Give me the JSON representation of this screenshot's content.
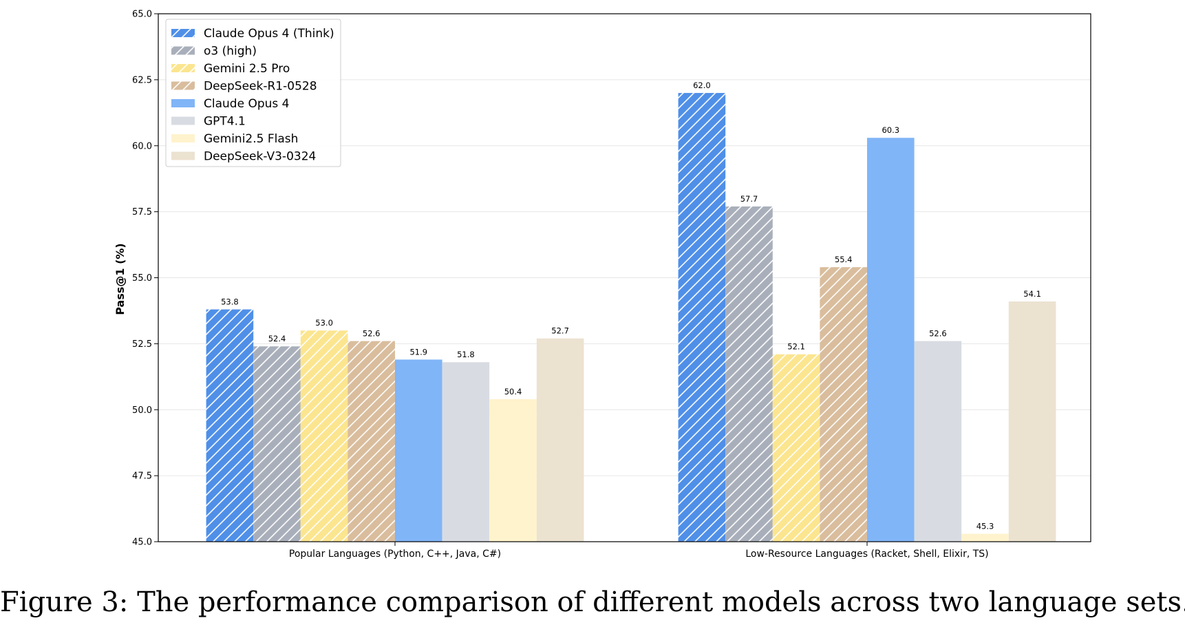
{
  "caption": "Figure 3: The performance comparison of different models across two language sets.",
  "chart_data": {
    "type": "bar",
    "title": "",
    "xlabel": "",
    "ylabel": "Pass@1 (%)",
    "ylim": [
      45.0,
      65.0
    ],
    "yticks": [
      "45.0",
      "47.5",
      "50.0",
      "52.5",
      "55.0",
      "57.5",
      "60.0",
      "62.5",
      "65.0"
    ],
    "grid": "horizontal",
    "legend_position": "top-left",
    "categories": [
      "Popular Languages (Python, C++, Java, C#)",
      "Low-Resource Languages (Racket, Shell, Elixir, TS)"
    ],
    "series": [
      {
        "name": "Claude Opus 4 (Think)",
        "values": [
          53.8,
          62.0
        ],
        "labels": [
          "53.8",
          "62.0"
        ],
        "color": "#4f8fe8",
        "hatched": true
      },
      {
        "name": "o3 (high)",
        "values": [
          52.4,
          57.7
        ],
        "labels": [
          "52.4",
          "57.7"
        ],
        "color": "#a9afba",
        "hatched": true
      },
      {
        "name": "Gemini 2.5 Pro",
        "values": [
          53.0,
          52.1
        ],
        "labels": [
          "53.0",
          "52.1"
        ],
        "color": "#fbe58f",
        "hatched": true
      },
      {
        "name": "DeepSeek-R1-0528",
        "values": [
          52.6,
          55.4
        ],
        "labels": [
          "52.6",
          "55.4"
        ],
        "color": "#d9bd9d",
        "hatched": true
      },
      {
        "name": "Claude Opus 4",
        "values": [
          51.9,
          60.3
        ],
        "labels": [
          "51.9",
          "60.3"
        ],
        "color": "#80b5f7",
        "hatched": false
      },
      {
        "name": "GPT4.1",
        "values": [
          51.8,
          52.6
        ],
        "labels": [
          "51.8",
          "52.6"
        ],
        "color": "#d8dce2",
        "hatched": false
      },
      {
        "name": "Gemini2.5 Flash",
        "values": [
          50.4,
          45.3
        ],
        "labels": [
          "50.4",
          "45.3"
        ],
        "color": "#fff3cd",
        "hatched": false
      },
      {
        "name": "DeepSeek-V3-0324",
        "values": [
          52.7,
          54.1
        ],
        "labels": [
          "52.7",
          "54.1"
        ],
        "color": "#ece2d0",
        "hatched": false
      }
    ]
  }
}
